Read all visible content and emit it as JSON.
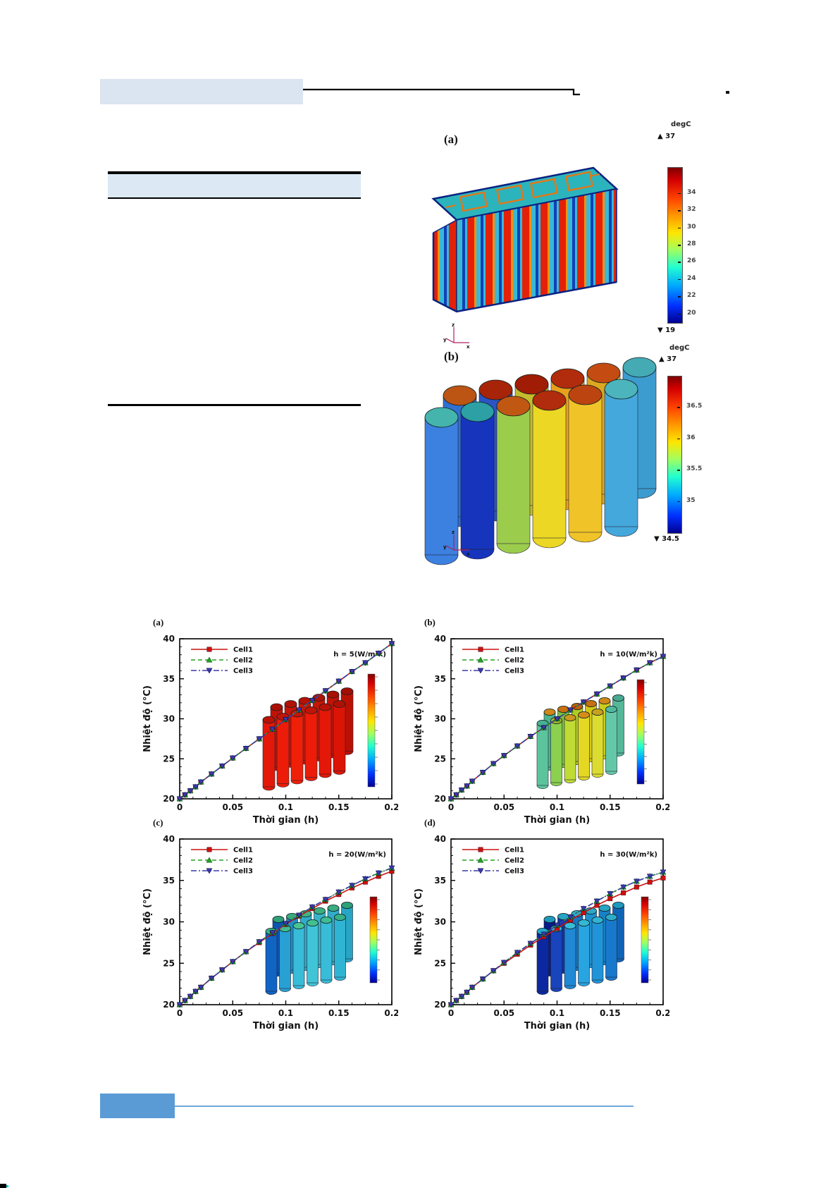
{
  "decor": {
    "top_highlight_box_color": "#dbe4f1",
    "table_band_color": "#dce9f5",
    "rule_color": "#000000",
    "stray_dot": ".",
    "footer_box_color": "#5b9bd5",
    "footer_line_color": "#6fa8dc",
    "corner_mark_color": "#000000"
  },
  "figures3d": {
    "axis_triad_labels": [
      "y",
      "x",
      "z"
    ],
    "panel_a": {
      "label": "(a)",
      "colorbar": {
        "unit": "degC",
        "max_annotation": "▲ 37",
        "min_annotation": "▼ 19",
        "value_max": 37,
        "value_min": 19,
        "tick_values": [
          34,
          32,
          30,
          28,
          26,
          24,
          22,
          20
        ],
        "tick_labels": [
          "34",
          "32",
          "30",
          "28",
          "26",
          "24",
          "22",
          "20"
        ]
      }
    },
    "panel_b": {
      "label": "(b)",
      "colorbar": {
        "unit": "degC",
        "max_annotation": "▲ 37",
        "min_annotation": "▼ 34.5",
        "value_max": 37,
        "value_min": 34.5,
        "tick_values": [
          36.5,
          36,
          35.5,
          35
        ],
        "tick_labels": [
          "36.5",
          "36",
          "35.5",
          "35"
        ]
      }
    }
  },
  "chart_data": [
    {
      "type": "line",
      "panel": "(a)",
      "annotation": "h = 5(W/m²k)",
      "xlabel": "Thời gian (h)",
      "ylabel": "Nhiệt độ (°C)",
      "xlim": [
        0,
        0.2
      ],
      "ylim": [
        20,
        40
      ],
      "xticks": [
        0,
        0.05,
        0.1,
        0.15,
        0.2
      ],
      "yticks": [
        20,
        25,
        30,
        35,
        40
      ],
      "legend": [
        "Cell1",
        "Cell2",
        "Cell3"
      ],
      "inset": "red",
      "x": [
        0,
        0.005,
        0.01,
        0.015,
        0.02,
        0.03,
        0.04,
        0.05,
        0.0625,
        0.075,
        0.0875,
        0.1,
        0.1125,
        0.125,
        0.1375,
        0.15,
        0.1625,
        0.175,
        0.1875,
        0.2
      ],
      "series": [
        {
          "name": "Cell1",
          "color": "#cc1111",
          "style": "solid",
          "marker": "square",
          "values": [
            20,
            20.5,
            21.0,
            21.5,
            22.1,
            23.1,
            24.1,
            25.1,
            26.3,
            27.5,
            28.7,
            29.9,
            31.1,
            32.3,
            33.5,
            34.7,
            35.9,
            37.0,
            38.2,
            39.4
          ]
        },
        {
          "name": "Cell2",
          "color": "#22a022",
          "style": "dashed",
          "marker": "triangle-up",
          "values": [
            20,
            20.5,
            21.0,
            21.5,
            22.1,
            23.1,
            24.1,
            25.1,
            26.3,
            27.5,
            28.7,
            29.9,
            31.1,
            32.3,
            33.5,
            34.7,
            35.9,
            37.0,
            38.2,
            39.4
          ]
        },
        {
          "name": "Cell3",
          "color": "#3a3aa8",
          "style": "dashdot",
          "marker": "triangle-down",
          "values": [
            20,
            20.5,
            21.0,
            21.5,
            22.1,
            23.1,
            24.1,
            25.1,
            26.3,
            27.5,
            28.7,
            29.9,
            31.1,
            32.3,
            33.5,
            34.7,
            35.9,
            37.0,
            38.2,
            39.4
          ]
        }
      ]
    },
    {
      "type": "line",
      "panel": "(b)",
      "annotation": "h = 10(W/m²k)",
      "xlabel": "Thời gian (h)",
      "ylabel": "Nhiệt độ (°C)",
      "xlim": [
        0,
        0.2
      ],
      "ylim": [
        20,
        40
      ],
      "xticks": [
        0,
        0.05,
        0.1,
        0.15,
        0.2
      ],
      "yticks": [
        20,
        25,
        30,
        35,
        40
      ],
      "legend": [
        "Cell1",
        "Cell2",
        "Cell3"
      ],
      "inset": "green",
      "x": [
        0,
        0.005,
        0.01,
        0.015,
        0.02,
        0.03,
        0.04,
        0.05,
        0.0625,
        0.075,
        0.0875,
        0.1,
        0.1125,
        0.125,
        0.1375,
        0.15,
        0.1625,
        0.175,
        0.1875,
        0.2
      ],
      "series": [
        {
          "name": "Cell1",
          "color": "#cc1111",
          "style": "solid",
          "marker": "square",
          "values": [
            20,
            20.5,
            21.1,
            21.6,
            22.2,
            23.3,
            24.4,
            25.4,
            26.6,
            27.8,
            28.9,
            30.0,
            31.1,
            32.1,
            33.1,
            34.1,
            35.1,
            36.1,
            37.0,
            37.8
          ]
        },
        {
          "name": "Cell2",
          "color": "#22a022",
          "style": "dashed",
          "marker": "triangle-up",
          "values": [
            20,
            20.5,
            21.1,
            21.6,
            22.2,
            23.3,
            24.4,
            25.4,
            26.6,
            27.8,
            28.9,
            30.0,
            31.1,
            32.1,
            33.1,
            34.1,
            35.1,
            36.1,
            37.0,
            37.8
          ]
        },
        {
          "name": "Cell3",
          "color": "#3a3aa8",
          "style": "dashdot",
          "marker": "triangle-down",
          "values": [
            20,
            20.5,
            21.1,
            21.6,
            22.2,
            23.3,
            24.4,
            25.4,
            26.6,
            27.8,
            28.9,
            30.0,
            31.1,
            32.1,
            33.1,
            34.1,
            35.1,
            36.1,
            37.0,
            37.8
          ]
        }
      ]
    },
    {
      "type": "line",
      "panel": "(c)",
      "annotation": "h = 20(W/m²k)",
      "xlabel": "Thời gian (h)",
      "ylabel": "Nhiệt độ (°C)",
      "xlim": [
        0,
        0.2
      ],
      "ylim": [
        20,
        40
      ],
      "xticks": [
        0,
        0.05,
        0.1,
        0.15,
        0.2
      ],
      "yticks": [
        20,
        25,
        30,
        35,
        40
      ],
      "legend": [
        "Cell1",
        "Cell2",
        "Cell3"
      ],
      "inset": "cyan",
      "x": [
        0,
        0.005,
        0.01,
        0.015,
        0.02,
        0.03,
        0.04,
        0.05,
        0.0625,
        0.075,
        0.0875,
        0.1,
        0.1125,
        0.125,
        0.1375,
        0.15,
        0.1625,
        0.175,
        0.1875,
        0.2
      ],
      "series": [
        {
          "name": "Cell1",
          "color": "#cc1111",
          "style": "solid",
          "marker": "square",
          "values": [
            20,
            20.5,
            21.0,
            21.6,
            22.1,
            23.2,
            24.2,
            25.2,
            26.4,
            27.5,
            28.6,
            29.7,
            30.7,
            31.6,
            32.5,
            33.3,
            34.1,
            34.8,
            35.5,
            36.1
          ]
        },
        {
          "name": "Cell2",
          "color": "#22a022",
          "style": "dashed",
          "marker": "triangle-up",
          "values": [
            20,
            20.5,
            21.0,
            21.6,
            22.1,
            23.2,
            24.2,
            25.2,
            26.4,
            27.6,
            28.7,
            29.8,
            30.8,
            31.8,
            32.7,
            33.6,
            34.4,
            35.2,
            35.9,
            36.5
          ]
        },
        {
          "name": "Cell3",
          "color": "#3a3aa8",
          "style": "dashdot",
          "marker": "triangle-down",
          "values": [
            20,
            20.5,
            21.0,
            21.6,
            22.1,
            23.2,
            24.2,
            25.2,
            26.4,
            27.6,
            28.7,
            29.8,
            30.8,
            31.8,
            32.7,
            33.6,
            34.4,
            35.2,
            35.9,
            36.5
          ]
        }
      ]
    },
    {
      "type": "line",
      "panel": "(d)",
      "annotation": "h = 30(W/m²k)",
      "xlabel": "Thời gian (h)",
      "ylabel": "Nhiệt độ (°C)",
      "xlim": [
        0,
        0.2
      ],
      "ylim": [
        20,
        40
      ],
      "xticks": [
        0,
        0.05,
        0.1,
        0.15,
        0.2
      ],
      "yticks": [
        20,
        25,
        30,
        35,
        40
      ],
      "legend": [
        "Cell1",
        "Cell2",
        "Cell3"
      ],
      "inset": "blue",
      "x": [
        0,
        0.005,
        0.01,
        0.015,
        0.02,
        0.03,
        0.04,
        0.05,
        0.0625,
        0.075,
        0.0875,
        0.1,
        0.1125,
        0.125,
        0.1375,
        0.15,
        0.1625,
        0.175,
        0.1875,
        0.2
      ],
      "series": [
        {
          "name": "Cell1",
          "color": "#cc1111",
          "style": "solid",
          "marker": "square",
          "values": [
            20,
            20.5,
            21.0,
            21.5,
            22.1,
            23.1,
            24.1,
            25.0,
            26.1,
            27.2,
            28.2,
            29.2,
            30.2,
            31.1,
            32.0,
            32.8,
            33.5,
            34.2,
            34.8,
            35.3
          ]
        },
        {
          "name": "Cell2",
          "color": "#22a022",
          "style": "dashed",
          "marker": "triangle-up",
          "values": [
            20,
            20.5,
            21.0,
            21.5,
            22.1,
            23.1,
            24.1,
            25.1,
            26.3,
            27.4,
            28.5,
            29.6,
            30.6,
            31.6,
            32.5,
            33.4,
            34.2,
            34.9,
            35.5,
            36.0
          ]
        },
        {
          "name": "Cell3",
          "color": "#3a3aa8",
          "style": "dashdot",
          "marker": "triangle-down",
          "values": [
            20,
            20.5,
            21.0,
            21.5,
            22.1,
            23.1,
            24.1,
            25.1,
            26.3,
            27.4,
            28.5,
            29.6,
            30.6,
            31.6,
            32.5,
            33.4,
            34.2,
            34.9,
            35.5,
            36.0
          ]
        }
      ]
    }
  ]
}
